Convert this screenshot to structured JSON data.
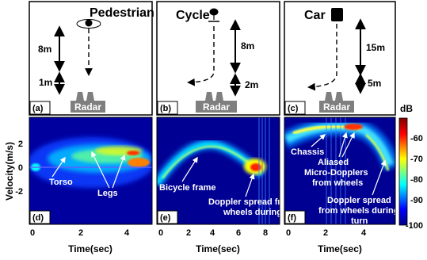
{
  "scenario_panels": [
    {
      "tag": "(a)",
      "title": "Pedestrian",
      "distances": [
        "8m",
        "1m"
      ],
      "radar_label": "Radar"
    },
    {
      "tag": "(b)",
      "title": "Cycle",
      "distances": [
        "8m",
        "2m"
      ],
      "radar_label": "Radar"
    },
    {
      "tag": "(c)",
      "title": "Car",
      "distances": [
        "15m",
        "5m"
      ],
      "radar_label": "Radar"
    }
  ],
  "spectrogram_panels": [
    {
      "tag": "(d)",
      "annotations": [
        "Torso",
        "Legs"
      ],
      "x_ticks": [
        "0",
        "2",
        "4"
      ]
    },
    {
      "tag": "(e)",
      "annotations": [
        "Bicycle frame",
        "Doppler spread  from",
        "wheels during turn"
      ],
      "x_ticks": [
        "0",
        "2",
        "4",
        "6",
        "8"
      ]
    },
    {
      "tag": "(f)",
      "annotations": [
        "Chassis",
        "Aliased",
        "Micro-Dopplers",
        "from wheels",
        "Doppler spread",
        "from wheels during",
        "turn"
      ],
      "x_ticks": [
        "0",
        "2",
        "4"
      ]
    }
  ],
  "y_axis": {
    "label": "Velocity(m/s)",
    "ticks": [
      "2",
      "0",
      "-2"
    ]
  },
  "x_axis_label": "Time(sec)",
  "colorbar": {
    "unit": "dB",
    "ticks": [
      "-60",
      "-70",
      "-80",
      "-90",
      "-100"
    ],
    "colors": [
      "#7f0000",
      "#ff0000",
      "#ffff00",
      "#00ffff",
      "#0000ff",
      "#00007f"
    ]
  }
}
